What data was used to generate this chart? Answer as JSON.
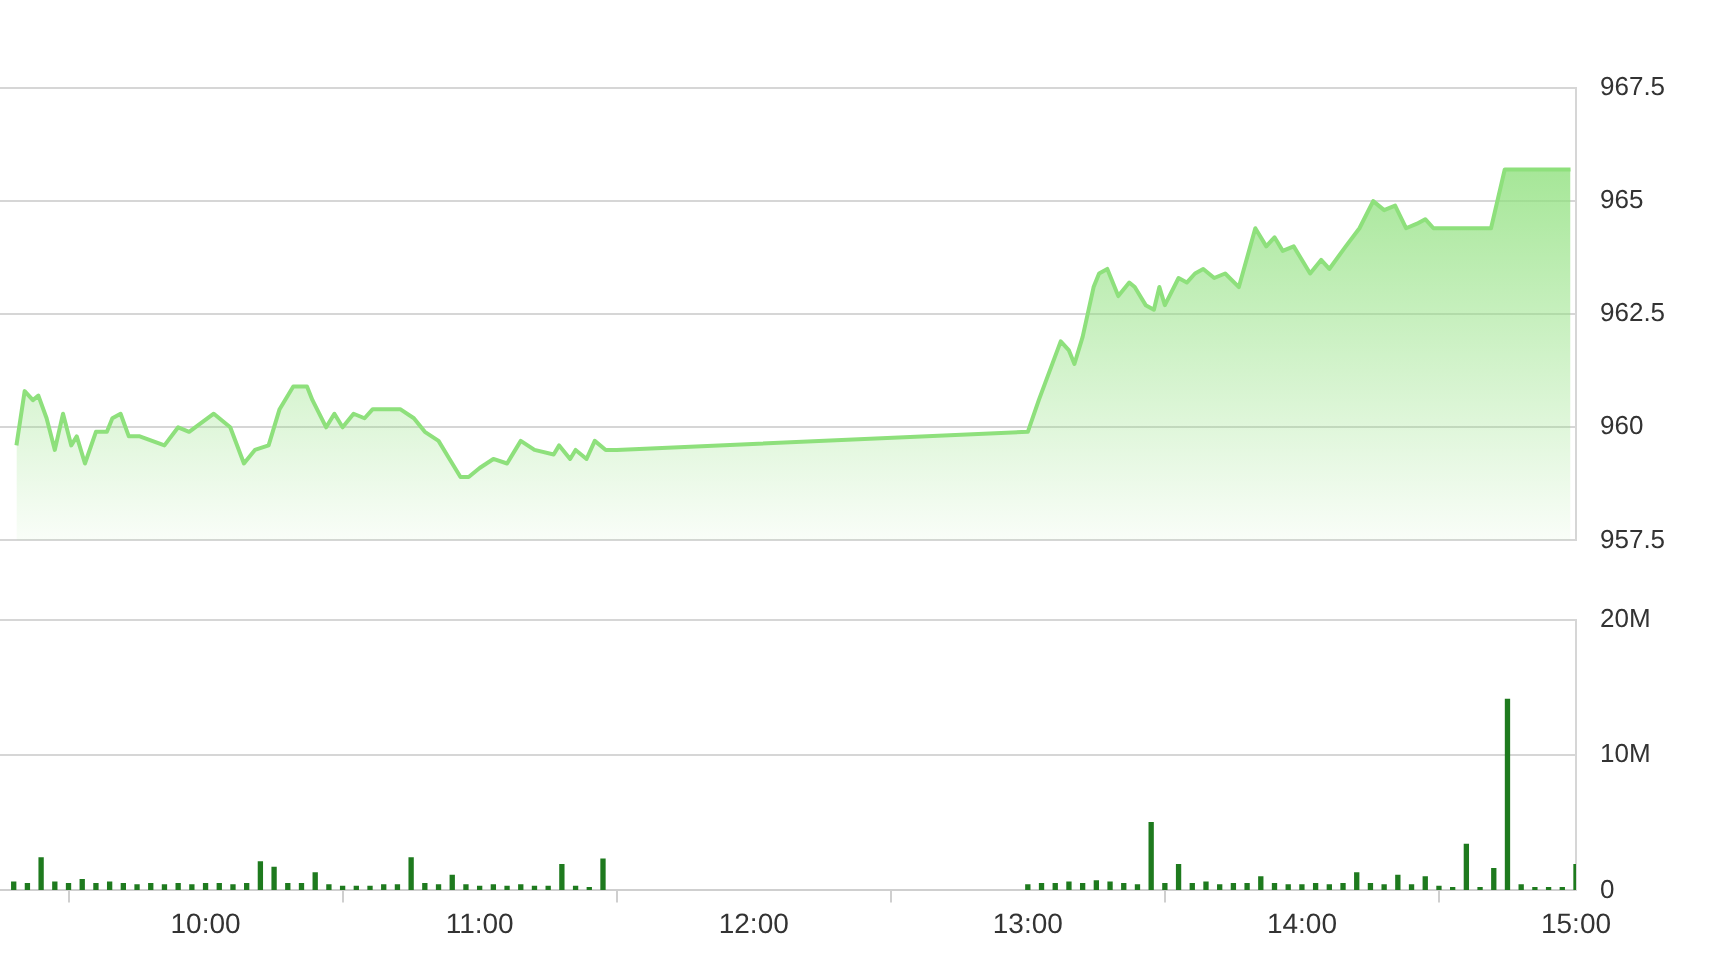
{
  "chart_data": [
    {
      "type": "area",
      "color": "#8ee07c",
      "x": [
        9.31,
        9.34,
        9.37,
        9.39,
        9.42,
        9.45,
        9.48,
        9.51,
        9.53,
        9.56,
        9.6,
        9.64,
        9.66,
        9.69,
        9.72,
        9.76,
        9.85,
        9.9,
        9.94,
        10.03,
        10.09,
        10.14,
        10.18,
        10.23,
        10.27,
        10.32,
        10.37,
        10.39,
        10.44,
        10.47,
        10.5,
        10.54,
        10.58,
        10.61,
        10.66,
        10.71,
        10.76,
        10.8,
        10.85,
        10.89,
        10.93,
        10.96,
        11.0,
        11.05,
        11.1,
        11.15,
        11.2,
        11.27,
        11.29,
        11.33,
        11.35,
        11.39,
        11.42,
        11.46,
        11.5,
        13.0,
        13.04,
        13.12,
        13.15,
        13.17,
        13.2,
        13.24,
        13.26,
        13.29,
        13.33,
        13.37,
        13.39,
        13.43,
        13.46,
        13.48,
        13.5,
        13.55,
        13.58,
        13.61,
        13.64,
        13.68,
        13.72,
        13.77,
        13.83,
        13.87,
        13.9,
        13.93,
        13.97,
        14.03,
        14.07,
        14.1,
        14.16,
        14.21,
        14.26,
        14.3,
        14.34,
        14.38,
        14.42,
        14.45,
        14.48,
        14.69,
        14.74,
        14.98
      ],
      "values": [
        959.6,
        960.8,
        960.6,
        960.7,
        960.2,
        959.5,
        960.3,
        959.6,
        959.8,
        959.2,
        959.9,
        959.9,
        960.2,
        960.3,
        959.8,
        959.8,
        959.6,
        960.0,
        959.9,
        960.3,
        960.0,
        959.2,
        959.5,
        959.6,
        960.4,
        960.9,
        960.9,
        960.6,
        960.0,
        960.3,
        960.0,
        960.3,
        960.2,
        960.4,
        960.4,
        960.4,
        960.2,
        959.9,
        959.7,
        959.3,
        958.9,
        958.9,
        959.1,
        959.3,
        959.2,
        959.7,
        959.5,
        959.4,
        959.6,
        959.3,
        959.5,
        959.3,
        959.7,
        959.5,
        959.5,
        959.9,
        960.6,
        961.9,
        961.7,
        961.4,
        962.0,
        963.1,
        963.4,
        963.5,
        962.9,
        963.2,
        963.1,
        962.7,
        962.6,
        963.1,
        962.7,
        963.3,
        963.2,
        963.4,
        963.5,
        963.3,
        963.4,
        963.1,
        964.4,
        964.0,
        964.2,
        963.9,
        964.0,
        963.4,
        963.7,
        963.5,
        964.0,
        964.4,
        965.0,
        964.8,
        964.9,
        964.4,
        964.5,
        964.6,
        964.4,
        964.4,
        965.7,
        965.7
      ],
      "xlim": [
        9.25,
        15
      ],
      "ylim": [
        957.5,
        967.5
      ],
      "yticks": [
        957.5,
        960,
        962.5,
        965,
        967.5
      ],
      "grid": "y",
      "tick_labels": "y"
    },
    {
      "type": "bar",
      "color": "#1e7a1e",
      "x": [
        9.3,
        9.35,
        9.4,
        9.45,
        9.5,
        9.55,
        9.6,
        9.65,
        9.7,
        9.75,
        9.8,
        9.85,
        9.9,
        9.95,
        10.0,
        10.05,
        10.1,
        10.15,
        10.2,
        10.25,
        10.3,
        10.35,
        10.4,
        10.45,
        10.5,
        10.55,
        10.6,
        10.65,
        10.7,
        10.75,
        10.8,
        10.85,
        10.9,
        10.95,
        11.0,
        11.05,
        11.1,
        11.15,
        11.2,
        11.25,
        11.3,
        11.35,
        11.4,
        11.45,
        13.0,
        13.05,
        13.1,
        13.15,
        13.2,
        13.25,
        13.3,
        13.35,
        13.4,
        13.45,
        13.5,
        13.55,
        13.6,
        13.65,
        13.7,
        13.75,
        13.8,
        13.85,
        13.9,
        13.95,
        14.0,
        14.05,
        14.1,
        14.15,
        14.2,
        14.25,
        14.3,
        14.35,
        14.4,
        14.45,
        14.5,
        14.55,
        14.6,
        14.65,
        14.7,
        14.75,
        14.8,
        14.85,
        14.9,
        14.95,
        15.0
      ],
      "values": [
        0.6,
        0.5,
        2.4,
        0.6,
        0.5,
        0.8,
        0.5,
        0.6,
        0.5,
        0.4,
        0.5,
        0.4,
        0.5,
        0.4,
        0.5,
        0.5,
        0.4,
        0.5,
        2.1,
        1.7,
        0.5,
        0.5,
        1.3,
        0.4,
        0.3,
        0.3,
        0.3,
        0.4,
        0.4,
        2.4,
        0.5,
        0.4,
        1.1,
        0.4,
        0.3,
        0.4,
        0.3,
        0.4,
        0.3,
        0.3,
        1.9,
        0.3,
        0.2,
        2.3,
        0.4,
        0.5,
        0.5,
        0.6,
        0.5,
        0.7,
        0.6,
        0.5,
        0.4,
        5.0,
        0.5,
        1.9,
        0.5,
        0.6,
        0.4,
        0.5,
        0.5,
        1.0,
        0.5,
        0.4,
        0.4,
        0.5,
        0.4,
        0.5,
        1.3,
        0.5,
        0.4,
        1.1,
        0.4,
        1.0,
        0.3,
        0.2,
        3.4,
        0.2,
        1.6,
        14.1,
        0.4,
        0.2,
        0.2,
        0.2,
        1.9
      ],
      "xlim": [
        9.25,
        15
      ],
      "xticks": [
        {
          "value": 10,
          "label": "10:00"
        },
        {
          "value": 11,
          "label": "11:00"
        },
        {
          "value": 12,
          "label": "12:00"
        },
        {
          "value": 13,
          "label": "13:00"
        },
        {
          "value": 14,
          "label": "14:00"
        },
        {
          "value": 15,
          "label": "15:00"
        }
      ],
      "ylim": [
        0,
        20
      ],
      "yticks": [
        0,
        {
          "value": 10,
          "label": "10M"
        },
        {
          "value": 20,
          "label": "20M"
        }
      ],
      "grid": "y"
    }
  ]
}
